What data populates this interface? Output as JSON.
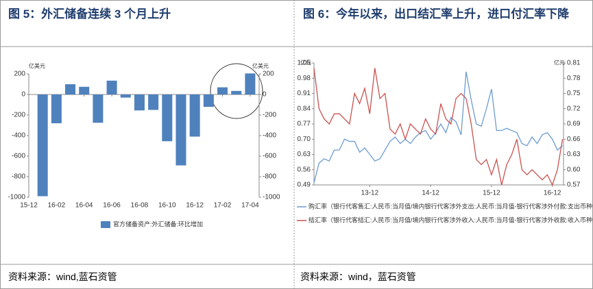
{
  "chart_data": [
    {
      "type": "bar",
      "title": "图 5：外汇储备连续 3 个月上升",
      "source": "资料来源：wind,蓝石资管",
      "y_unit": "亿美元",
      "y2_unit": "亿美元",
      "categories": [
        "15-12",
        null,
        "16-02",
        null,
        "16-04",
        null,
        "16-06",
        null,
        "16-08",
        null,
        "16-10",
        null,
        "16-12",
        null,
        "17-02",
        null,
        "17-04"
      ],
      "series": [
        {
          "name": "官方储备资产:外汇储备:环比增加",
          "color": "#4f81bd",
          "values": [
            null,
            -990,
            -280,
            100,
            75,
            -275,
            135,
            -30,
            -155,
            -150,
            -455,
            -690,
            -410,
            -120,
            70,
            35,
            205
          ]
        }
      ],
      "ylim": [
        -1000,
        200
      ],
      "yticks": [
        200,
        0,
        -200,
        -400,
        -600,
        -800,
        -1000
      ],
      "y2lim": [
        -1000,
        200
      ],
      "y2ticks": [
        200,
        0,
        -200,
        -400,
        -600,
        -800,
        -1000
      ]
    },
    {
      "type": "line",
      "title": "图 6：今年以来，出口结汇率上升，进口付汇率下降",
      "source": "资料来源：wind，蓝石资管",
      "y_unit": "亿元",
      "y2_unit": "亿元",
      "categories": [
        null,
        null,
        null,
        null,
        null,
        null,
        null,
        null,
        null,
        null,
        null,
        "13-12",
        null,
        null,
        null,
        null,
        null,
        null,
        null,
        null,
        null,
        null,
        null,
        "14-12",
        null,
        null,
        null,
        null,
        null,
        null,
        null,
        null,
        null,
        null,
        null,
        "15-12",
        null,
        null,
        null,
        null,
        null,
        null,
        null,
        null,
        null,
        null,
        null,
        "16-12",
        null,
        null
      ],
      "series": [
        {
          "name": "购汇率（银行代客售汇:人民币:当月值/境内银行代客涉外支出:人民币:当月值-银行代客涉外付款:支出币种:",
          "color": "#6b9bd2",
          "axis": "y",
          "values": [
            0.5,
            0.59,
            0.61,
            0.6,
            0.65,
            0.65,
            0.7,
            0.69,
            0.69,
            0.64,
            0.66,
            0.63,
            0.6,
            0.61,
            0.65,
            0.69,
            0.71,
            0.68,
            0.7,
            0.68,
            0.71,
            0.73,
            0.74,
            0.7,
            0.73,
            0.77,
            0.73,
            0.8,
            0.78,
            0.72,
            1.01,
            0.88,
            0.77,
            0.76,
            0.84,
            0.93,
            0.74,
            0.74,
            0.75,
            0.74,
            0.73,
            0.68,
            0.67,
            0.71,
            0.68,
            0.72,
            0.73,
            0.7,
            0.65,
            0.67
          ]
        },
        {
          "name": "结汇率（银行代客结汇:人民币:当月值/境内银行代客涉外收入:人民币:当月值-银行代客涉外收款:收入币种:",
          "color": "#c9514d",
          "axis": "y2",
          "values": [
            0.8,
            0.72,
            0.7,
            0.69,
            0.71,
            0.71,
            0.7,
            0.69,
            0.75,
            0.73,
            0.76,
            0.71,
            0.8,
            0.74,
            0.75,
            0.68,
            0.67,
            0.69,
            0.66,
            0.69,
            0.68,
            0.67,
            0.7,
            0.68,
            0.67,
            0.73,
            0.7,
            0.69,
            0.74,
            0.75,
            0.74,
            0.69,
            0.62,
            0.61,
            0.62,
            0.59,
            0.62,
            0.57,
            0.61,
            0.63,
            0.66,
            0.6,
            0.59,
            0.6,
            0.59,
            0.58,
            0.59,
            0.57,
            0.6,
            0.66
          ]
        }
      ],
      "ylim": [
        0.49,
        1.05
      ],
      "yticks": [
        1.05,
        0.98,
        0.91,
        0.84,
        0.77,
        {
          "value": 0.7,
          "label": "0.70"
        },
        0.63,
        0.56,
        0.49
      ],
      "y2lim": [
        0.57,
        0.81
      ],
      "y2ticks": [
        0.81,
        0.78,
        0.75,
        0.72,
        0.69,
        0.66,
        0.63,
        {
          "value": 0.6,
          "label": "0.60"
        },
        0.57
      ]
    }
  ]
}
